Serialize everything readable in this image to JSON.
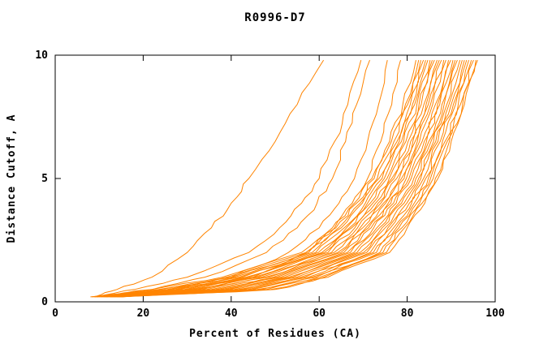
{
  "chart_data": {
    "type": "line",
    "title": "R0996-D7",
    "xlabel": "Percent of Residues (CA)",
    "ylabel": "Distance Cutoff, A",
    "xlim": [
      0,
      100
    ],
    "ylim": [
      0,
      10
    ],
    "x_ticks": [
      0,
      20,
      40,
      60,
      80,
      100
    ],
    "y_ticks": [
      0,
      5,
      10
    ],
    "grid": false,
    "legend": "none",
    "line_color": "#ff8400",
    "axis_color": "#000000",
    "y_anchors": [
      0.2,
      0.5,
      1,
      2,
      3,
      4,
      5,
      6.5,
      8,
      9.8
    ],
    "series_x": [
      [
        8,
        22,
        38,
        56,
        63,
        68,
        72,
        76,
        79,
        82
      ],
      [
        8.3,
        23.5,
        39,
        57,
        63.8,
        68.5,
        72.5,
        76.4,
        79.6,
        82.6
      ],
      [
        8.6,
        24,
        40.2,
        57.6,
        64.4,
        69.3,
        73.2,
        77,
        80.1,
        83.1
      ],
      [
        8.9,
        25.5,
        40.8,
        58.4,
        65,
        69.8,
        73.6,
        77.7,
        80.7,
        83.7
      ],
      [
        9.1,
        26,
        41.8,
        59.2,
        65.7,
        70.5,
        74.3,
        78.2,
        81.2,
        84.2
      ],
      [
        9.4,
        27.3,
        42.5,
        59.8,
        66.2,
        71,
        74.8,
        78.7,
        81.7,
        84.7
      ],
      [
        9.7,
        28,
        43.4,
        60.6,
        66.9,
        71.6,
        75.4,
        79.2,
        82.2,
        85.2
      ],
      [
        10,
        29.4,
        44.1,
        61.2,
        67.4,
        72.2,
        75.9,
        79.7,
        82.7,
        85.7
      ],
      [
        10.2,
        30.2,
        45.2,
        62,
        68.1,
        72.8,
        76.5,
        80.2,
        83.2,
        86.2
      ],
      [
        10.5,
        31.2,
        46,
        62.8,
        68.7,
        73.4,
        77,
        80.8,
        83.8,
        86.8
      ],
      [
        10.8,
        32.3,
        46.9,
        63.4,
        69.3,
        74,
        77.6,
        81.3,
        84.3,
        87.3
      ],
      [
        11,
        33.3,
        47.8,
        64.2,
        69.9,
        74.6,
        78.2,
        81.8,
        84.8,
        87.8
      ],
      [
        11.3,
        34.4,
        48.6,
        64.9,
        70.6,
        75.1,
        78.7,
        82.3,
        85.3,
        88.3
      ],
      [
        11.6,
        35.5,
        49.6,
        65.6,
        71.2,
        75.7,
        79.3,
        82.8,
        85.8,
        88.8
      ],
      [
        11.8,
        36.5,
        50.4,
        66.4,
        71.8,
        76.3,
        79.8,
        83.4,
        86.4,
        89.4
      ],
      [
        12.1,
        37.5,
        51.3,
        67.1,
        72.4,
        76.9,
        80.4,
        83.9,
        86.9,
        89.9
      ],
      [
        12.4,
        38.6,
        52.2,
        67.9,
        73.1,
        77.5,
        80.9,
        84.4,
        87.4,
        90.4
      ],
      [
        12.6,
        39.6,
        53.1,
        68.6,
        73.7,
        78.1,
        81.5,
        84.9,
        87.9,
        90.9
      ],
      [
        12.9,
        40.7,
        54,
        69.3,
        74.3,
        78.7,
        82,
        85.4,
        88.4,
        91.4
      ],
      [
        13.2,
        41.7,
        54.9,
        70.1,
        75,
        79.3,
        82.6,
        86,
        89,
        92
      ],
      [
        13.4,
        42.7,
        55.8,
        70.8,
        75.6,
        79.9,
        83.1,
        86.5,
        89.5,
        92.5
      ],
      [
        13.7,
        43.8,
        56.7,
        71.6,
        76.2,
        80.5,
        83.7,
        87,
        90,
        93
      ],
      [
        14,
        44.8,
        57.6,
        72.3,
        76.9,
        81,
        84.2,
        87.5,
        90.5,
        93.5
      ],
      [
        14.3,
        45.9,
        58.4,
        73,
        77.5,
        81.6,
        84.8,
        88,
        91,
        94
      ],
      [
        14.5,
        46.9,
        59.3,
        73.8,
        78.1,
        82.2,
        85.3,
        88.6,
        91.6,
        94.6
      ],
      [
        14.8,
        48,
        60.2,
        74.5,
        78.8,
        82.8,
        85.9,
        89.1,
        92.1,
        95.1
      ],
      [
        15,
        49,
        61.1,
        75.3,
        79.4,
        83.4,
        86.4,
        89.6,
        92.6,
        95.6
      ],
      [
        15.2,
        50,
        62,
        76,
        80,
        84,
        87,
        90,
        93,
        96
      ],
      [
        9,
        14,
        22,
        30,
        35.5,
        40,
        44,
        50,
        55,
        61
      ],
      [
        9.5,
        18,
        30,
        44,
        51,
        56,
        60,
        63.5,
        66.5,
        69.5
      ],
      [
        10.5,
        22,
        34,
        48,
        55,
        59.5,
        63,
        66,
        68.5,
        71.5
      ],
      [
        11.5,
        26,
        40,
        53,
        60,
        64.5,
        68,
        71,
        73.5,
        75.5
      ],
      [
        12.5,
        30,
        45,
        57,
        63.5,
        67.5,
        71,
        74,
        76.5,
        78.5
      ]
    ]
  }
}
